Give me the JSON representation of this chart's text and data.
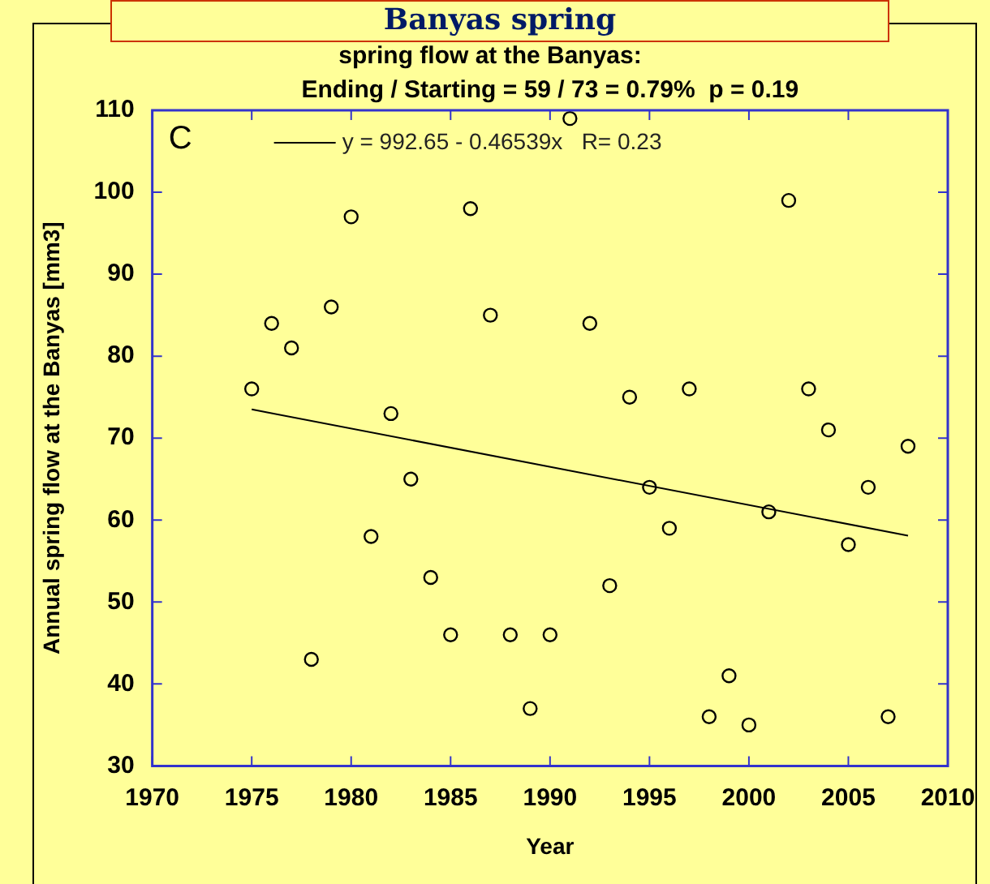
{
  "chart_data": {
    "type": "scatter",
    "title": "Banyas spring",
    "subtitle": "spring flow at the Banyas:",
    "annotations": [
      "Ending / Starting = 59 / 73 = 0.79%  p = 0.19",
      "C"
    ],
    "xlabel": "Year",
    "ylabel": "Annual spring flow at the Banyas [mm3]",
    "x": [
      1975,
      1976,
      1977,
      1978,
      1979,
      1980,
      1981,
      1982,
      1983,
      1984,
      1985,
      1986,
      1987,
      1988,
      1989,
      1990,
      1991,
      1992,
      1993,
      1994,
      1995,
      1996,
      1997,
      1998,
      1999,
      2000,
      2001,
      2002,
      2003,
      2004,
      2005,
      2006,
      2007,
      2008
    ],
    "series": [
      {
        "marker": "circle",
        "color": "#000000",
        "values": [
          76,
          84,
          81,
          43,
          86,
          97,
          58,
          73,
          65,
          53,
          46,
          98,
          85,
          46,
          37,
          46,
          109,
          84,
          52,
          75,
          64,
          59,
          76,
          36,
          41,
          35,
          61,
          99,
          76,
          71,
          57,
          64,
          36,
          69
        ]
      },
      {
        "type": "line",
        "marker": "none",
        "name": "y = 992.65 - 0.46539x   R= 0.23",
        "color": "#000000",
        "x": [
          1975,
          2008
        ],
        "values": [
          73.5,
          58.1
        ]
      }
    ],
    "xlim": [
      1970,
      2010
    ],
    "xticks": [
      1970,
      1975,
      1980,
      1985,
      1990,
      1995,
      2000,
      2005,
      2010
    ],
    "ylim": [
      30,
      110
    ],
    "yticks": [
      30,
      40,
      50,
      60,
      70,
      80,
      90,
      100,
      110
    ],
    "grid": false,
    "legend": "top left",
    "line_style": "solid"
  }
}
